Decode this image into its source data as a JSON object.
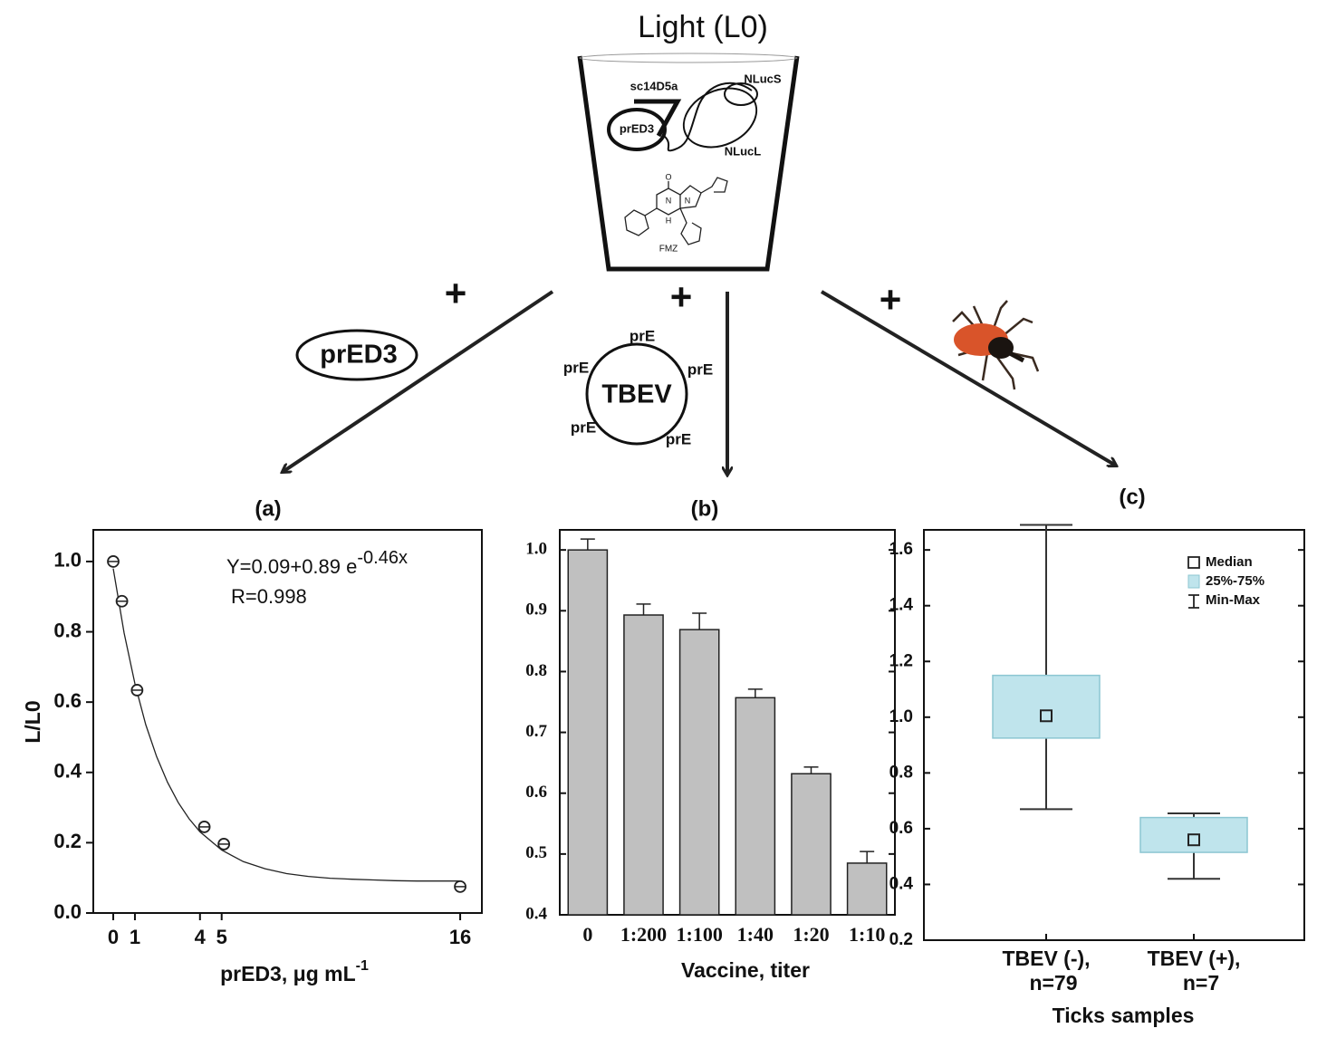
{
  "diagram": {
    "title": "Light (L0)",
    "cup_labels": [
      "sc14D5a",
      "NLucS",
      "prED3",
      "NLucL",
      "FMZ"
    ],
    "atoms": [
      "O",
      "N",
      "N",
      "H"
    ],
    "plus_signs": [
      "+",
      "+",
      "+"
    ],
    "ellipse_label": "prED3",
    "virus_label": "TBEV",
    "virus_protein_labels": [
      "prE",
      "prE",
      "prE",
      "prE",
      "prE"
    ]
  },
  "chart_data": [
    {
      "type": "scatter",
      "title": "(a)",
      "x_label": "prED3, μg mL",
      "x_label_superscript": "-1",
      "y_label": "L/L0",
      "equation": "Y=0.09+0.89 e",
      "equation_exponent": "-0.46x",
      "r_text": "R=0.998",
      "x": [
        0,
        0.4,
        1.1,
        4.2,
        5.1,
        16
      ],
      "values": [
        1.0,
        0.887,
        0.634,
        0.245,
        0.196,
        0.075
      ],
      "fit": {
        "x": [
          0,
          0.5,
          1,
          1.5,
          2,
          2.5,
          3,
          3.5,
          4,
          5,
          6,
          7,
          8,
          9,
          10,
          11,
          12,
          13,
          14,
          15,
          16
        ],
        "values": [
          0.98,
          0.797,
          0.652,
          0.536,
          0.445,
          0.372,
          0.314,
          0.268,
          0.231,
          0.179,
          0.146,
          0.126,
          0.112,
          0.104,
          0.099,
          0.096,
          0.094,
          0.092,
          0.091,
          0.091,
          0.091
        ]
      },
      "xlim": [
        -0.92,
        17
      ],
      "ylim": [
        0,
        1.09
      ],
      "xticks": [
        0,
        1,
        4,
        5,
        16
      ],
      "yticks": [
        {
          "value": 0,
          "label": "0.0"
        },
        0.2,
        0.4,
        0.6,
        0.8,
        {
          "value": 1,
          "label": "1.0"
        }
      ]
    },
    {
      "type": "bar",
      "title": "(b)",
      "x_label": "Vaccine, titer",
      "color": "#c0c0c0",
      "categories": [
        "0",
        "1:200",
        "1:100",
        "1:40",
        "1:20",
        "1:10"
      ],
      "values": [
        1.0,
        0.893,
        0.869,
        0.757,
        0.632,
        0.485
      ],
      "errors": [
        0.018,
        0.018,
        0.027,
        0.014,
        0.011,
        0.019
      ],
      "ylim": [
        0.4,
        1.033
      ],
      "yticks": [
        0.4,
        0.5,
        0.6,
        0.7,
        0.8,
        0.9,
        {
          "value": 1,
          "label": "1.0"
        }
      ]
    },
    {
      "type": "box",
      "title": "(c)",
      "x_label": "Ticks samples",
      "color": "#bfe4ec",
      "categories": [
        "TBEV (-),",
        "TBEV (+),"
      ],
      "n_labels": [
        "n=79",
        "n=7"
      ],
      "min": [
        0.67,
        0.42
      ],
      "q1": [
        0.925,
        0.515
      ],
      "median": [
        1.005,
        0.56
      ],
      "q3": [
        1.15,
        0.64
      ],
      "max": [
        1.69,
        0.655
      ],
      "legend": [
        "Median",
        "25%-75%",
        "Min-Max"
      ],
      "ylim": [
        0.2,
        1.672
      ],
      "yticks": [
        0.2,
        0.4,
        0.6,
        0.8,
        {
          "value": 1,
          "label": "1.0"
        },
        1.2,
        1.4,
        1.6
      ]
    }
  ]
}
